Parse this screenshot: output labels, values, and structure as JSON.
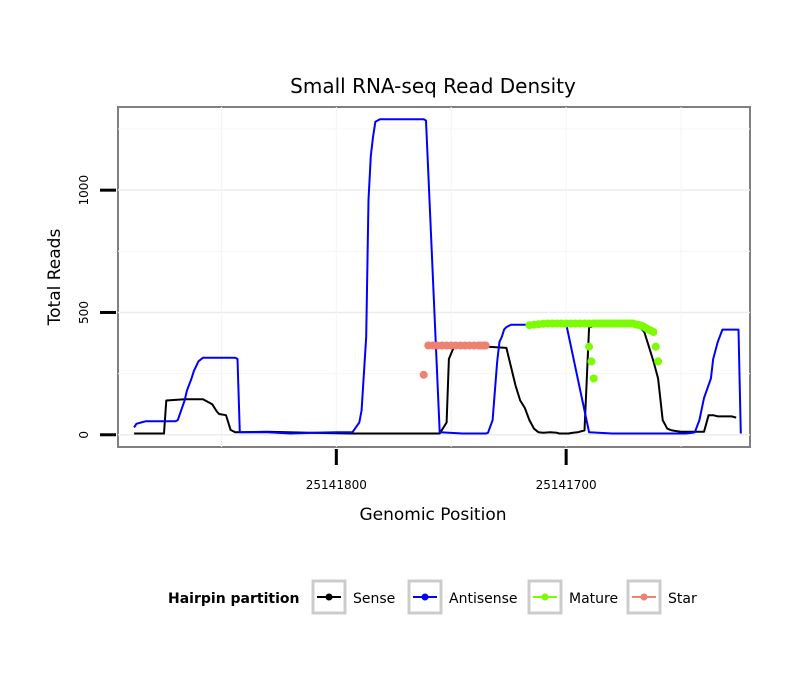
{
  "chart_data": {
    "type": "line",
    "title": "Small RNA-seq Read Density",
    "xlabel": "Genomic Position",
    "ylabel": "Total Reads",
    "x_reversed": true,
    "xlim": [
      25141895,
      25141620
    ],
    "ylim": [
      -50,
      1340
    ],
    "x_ticks": [
      25141800,
      25141700
    ],
    "x_tick_labels": [
      "25141800",
      "25141700"
    ],
    "y_ticks": [
      0,
      500,
      1000
    ],
    "y_tick_labels": [
      "0",
      "500",
      "1000"
    ],
    "grid": true,
    "legend": {
      "title": "Hairpin partition",
      "position": "bottom",
      "entries": [
        "Sense",
        "Antisense",
        "Mature",
        "Star"
      ]
    },
    "series": [
      {
        "name": "Sense",
        "color": "#000000",
        "style": "line",
        "x": [
          25141888,
          25141875,
          25141874,
          25141866,
          25141858,
          25141857,
          25141854,
          25141852,
          25141851,
          25141848,
          25141846,
          25141844,
          25141830,
          25141812,
          25141793,
          25141768,
          25141755,
          25141752,
          25141751,
          25141749,
          25141748,
          25141746,
          25141744,
          25141742,
          25141740,
          25141737,
          25141736,
          25141734,
          25141726,
          25141722,
          25141720,
          25141718,
          25141716,
          25141714,
          25141712,
          25141710,
          25141707,
          25141704,
          25141703,
          25141701,
          25141699,
          25141697,
          25141695,
          25141692,
          25141690,
          25141688,
          25141686,
          25141684,
          25141682,
          25141680,
          25141678,
          25141676,
          25141674,
          25141672,
          25141670,
          25141668,
          25141666,
          25141664,
          25141662,
          25141660,
          25141658,
          25141656,
          25141654,
          25141652,
          25141650,
          25141648,
          25141646,
          25141644,
          25141642,
          25141640,
          25141638,
          25141636,
          25141634,
          25141632,
          25141630,
          25141628,
          25141626
        ],
        "y": [
          5,
          5,
          140,
          145,
          145,
          140,
          125,
          95,
          85,
          80,
          20,
          10,
          12,
          8,
          5,
          5,
          5,
          50,
          310,
          355,
          360,
          365,
          365,
          365,
          365,
          365,
          365,
          360,
          355,
          200,
          140,
          110,
          60,
          25,
          10,
          8,
          10,
          8,
          5,
          5,
          5,
          8,
          10,
          18,
          440,
          445,
          450,
          455,
          455,
          455,
          455,
          455,
          452,
          450,
          448,
          440,
          420,
          360,
          300,
          230,
          60,
          25,
          18,
          15,
          12,
          12,
          12,
          12,
          12,
          12,
          80,
          80,
          75,
          75,
          75,
          75,
          70
        ],
        "points": false
      },
      {
        "name": "Antisense",
        "color": "#0000ff",
        "style": "line",
        "x": [
          25141888,
          25141887,
          25141885,
          25141883,
          25141870,
          25141869,
          25141866,
          25141865,
          25141863,
          25141862,
          25141860,
          25141858,
          25141852,
          25141844,
          25141843,
          25141842,
          25141830,
          25141820,
          25141810,
          25141800,
          25141793,
          25141790,
          25141789,
          25141787,
          25141786,
          25141785,
          25141784,
          25141783,
          25141781,
          25141780,
          25141777,
          25141770,
          25141762,
          25141761,
          25141755,
          25141745,
          25141735,
          25141734,
          25141732,
          25141730,
          25141729,
          25141728,
          25141727,
          25141726,
          25141724,
          25141720,
          25141716,
          25141712,
          25141707,
          25141702,
          25141700,
          25141690,
          25141680,
          25141670,
          25141660,
          25141652,
          25141650,
          25141648,
          25141645,
          25141644,
          25141642,
          25141640,
          25141637,
          25141636,
          25141634,
          25141632,
          25141630,
          25141628,
          25141626,
          25141625,
          25141624
        ],
        "y": [
          30,
          45,
          50,
          55,
          55,
          60,
          140,
          180,
          230,
          260,
          300,
          315,
          315,
          315,
          310,
          10,
          10,
          5,
          8,
          10,
          10,
          50,
          100,
          400,
          960,
          1140,
          1220,
          1280,
          1290,
          1290,
          1290,
          1290,
          1290,
          1285,
          10,
          5,
          5,
          8,
          60,
          300,
          380,
          400,
          430,
          440,
          450,
          450,
          450,
          455,
          455,
          455,
          455,
          10,
          5,
          5,
          5,
          5,
          5,
          5,
          8,
          10,
          60,
          150,
          230,
          310,
          380,
          430,
          430,
          430,
          430,
          430,
          5
        ],
        "points": false
      },
      {
        "name": "Mature",
        "color": "#7cfc00",
        "style": "points",
        "x": [
          25141716,
          25141714,
          25141712,
          25141710,
          25141708,
          25141706,
          25141704,
          25141702,
          25141700,
          25141698,
          25141696,
          25141694,
          25141692,
          25141690,
          25141688,
          25141687,
          25141686,
          25141685,
          25141684,
          25141683,
          25141682,
          25141681,
          25141680,
          25141679,
          25141678,
          25141677,
          25141676,
          25141675,
          25141674,
          25141673,
          25141672,
          25141671,
          25141670,
          25141669,
          25141668,
          25141667,
          25141666,
          25141665,
          25141664,
          25141663,
          25141662,
          25141661,
          25141660
        ],
        "y": [
          448,
          450,
          452,
          454,
          455,
          455,
          455,
          455,
          455,
          455,
          455,
          455,
          455,
          455,
          455,
          455,
          455,
          455,
          455,
          455,
          455,
          455,
          455,
          455,
          455,
          455,
          455,
          455,
          455,
          455,
          455,
          455,
          452,
          450,
          448,
          445,
          440,
          435,
          430,
          425,
          420,
          360,
          300
        ],
        "extra_points": [
          [
            25141690,
            360
          ],
          [
            25141689,
            300
          ],
          [
            25141688,
            230
          ]
        ],
        "points": true
      },
      {
        "name": "Star",
        "color": "#f08070",
        "style": "points",
        "x": [
          25141762,
          25141760,
          25141758,
          25141756,
          25141754,
          25141752,
          25141750,
          25141748,
          25141746,
          25141744,
          25141742,
          25141740,
          25141738,
          25141737,
          25141736,
          25141735
        ],
        "y": [
          245,
          365,
          365,
          365,
          365,
          365,
          365,
          365,
          365,
          365,
          365,
          365,
          365,
          365,
          365,
          365
        ],
        "points": true
      }
    ]
  }
}
